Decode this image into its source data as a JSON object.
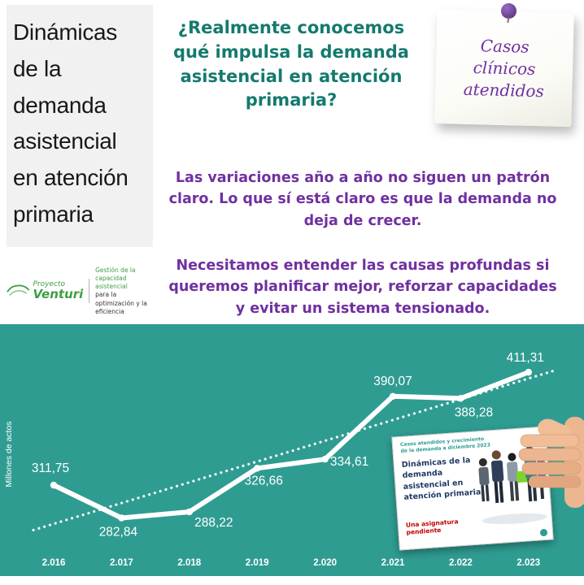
{
  "colors": {
    "teal_bg": "#2f9c92",
    "teal_text": "#147a6e",
    "purple": "#7030a0",
    "title_bg": "#f1f1f1",
    "logo_green": "#3f9e44",
    "slide_navy": "#1f3864",
    "slide_red": "#c00000",
    "line_white": "#ffffff",
    "skin": "#ecb690"
  },
  "title_box": {
    "text": "Dinámicas\nde la\ndemanda\nasistencial\nen atención\nprimaria"
  },
  "question": {
    "text": "¿Realmente conocemos\nqué impulsa la demanda\nasistencial en atención\nprimaria?"
  },
  "sticky_note": {
    "text": "Casos\nclínicos\natendidos"
  },
  "logo": {
    "project": "Proyecto",
    "name": "Venturi",
    "tagline_line1": "Gestión de la capacidad asistencial",
    "tagline_line2": "para la optimización y la eficiencia"
  },
  "paragraphs": {
    "p1": "Las variaciones año a año no siguen un patrón\nclaro. Lo que sí está claro es que la demanda no\ndeja de crecer.",
    "p2": "Necesitamos entender las causas profundas si\nqueremos planificar mejor, reforzar capacidades\ny evitar un sistema tensionado."
  },
  "chart_data": {
    "type": "line",
    "title": "",
    "ylabel": "Millones de actos",
    "xlabel": "",
    "categories": [
      "2.016",
      "2.017",
      "2.018",
      "2.019",
      "2.020",
      "2.021",
      "2.022",
      "2.023"
    ],
    "values": [
      311.75,
      282.84,
      288.22,
      326.66,
      334.61,
      390.07,
      388.28,
      411.31
    ],
    "value_labels": [
      "311,75",
      "282,84",
      "288,22",
      "326,66",
      "334,61",
      "390,07",
      "388,28",
      "411,31"
    ],
    "series_color": "#ffffff",
    "background": "#2f9c92",
    "trendline": {
      "style": "dotted",
      "color": "#ffffff"
    },
    "ylim": [
      266,
      425
    ],
    "grid": false,
    "legend": false
  },
  "slide_thumb": {
    "top_text": "Casos atendidos y crecimiento\nde la demanda a diciembre 2023",
    "title": "Dinámicas de la\ndemanda\nasistencial en\natención primaria",
    "subtitle": "Una asignatura pendiente"
  }
}
